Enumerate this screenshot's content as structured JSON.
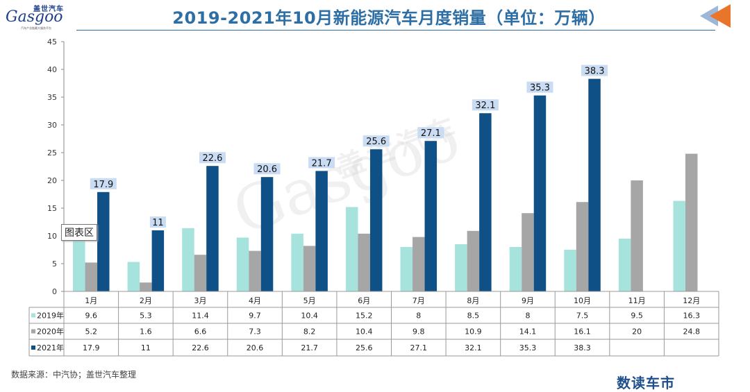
{
  "header": {
    "title": "2019-2021年10月新能源汽车月度销量（单位：万辆）",
    "logo_cn": "盖世汽车",
    "logo_en": "Gasgoo",
    "logo_slogan": "汽车产业链最大服务平台"
  },
  "watermark": {
    "en": "Gasgoo",
    "cn": "盖世汽车"
  },
  "tooltip": {
    "label": "图表区"
  },
  "footer": {
    "source": "数据来源：中汽协；盖世汽车整理",
    "brand": "数读车市"
  },
  "colors": {
    "s2019": "#a6e3dc",
    "s2020": "#a6a6a6",
    "s2021": "#0f5087",
    "title": "#2d6ea5",
    "label_bg": "#c9dcf3"
  },
  "chart_data": {
    "type": "bar",
    "ylim": [
      0,
      45
    ],
    "yticks": [
      0,
      5,
      10,
      15,
      20,
      25,
      30,
      35,
      40,
      45
    ],
    "categories": [
      "1月",
      "2月",
      "3月",
      "4月",
      "5月",
      "6月",
      "7月",
      "8月",
      "9月",
      "10月",
      "11月",
      "12月"
    ],
    "series": [
      {
        "name": "2019年",
        "values": [
          9.6,
          5.3,
          11.4,
          9.7,
          10.4,
          15.2,
          8,
          8.5,
          8,
          7.5,
          9.5,
          16.3
        ]
      },
      {
        "name": "2020年",
        "values": [
          5.2,
          1.6,
          6.6,
          7.3,
          8.2,
          10.4,
          9.8,
          10.9,
          14.1,
          16.1,
          20,
          24.8
        ]
      },
      {
        "name": "2021年",
        "values": [
          17.9,
          11,
          22.6,
          20.6,
          21.7,
          25.6,
          27.1,
          32.1,
          35.3,
          38.3,
          null,
          null
        ]
      }
    ],
    "data_labels_series": "2021年",
    "legend": "data-table"
  }
}
